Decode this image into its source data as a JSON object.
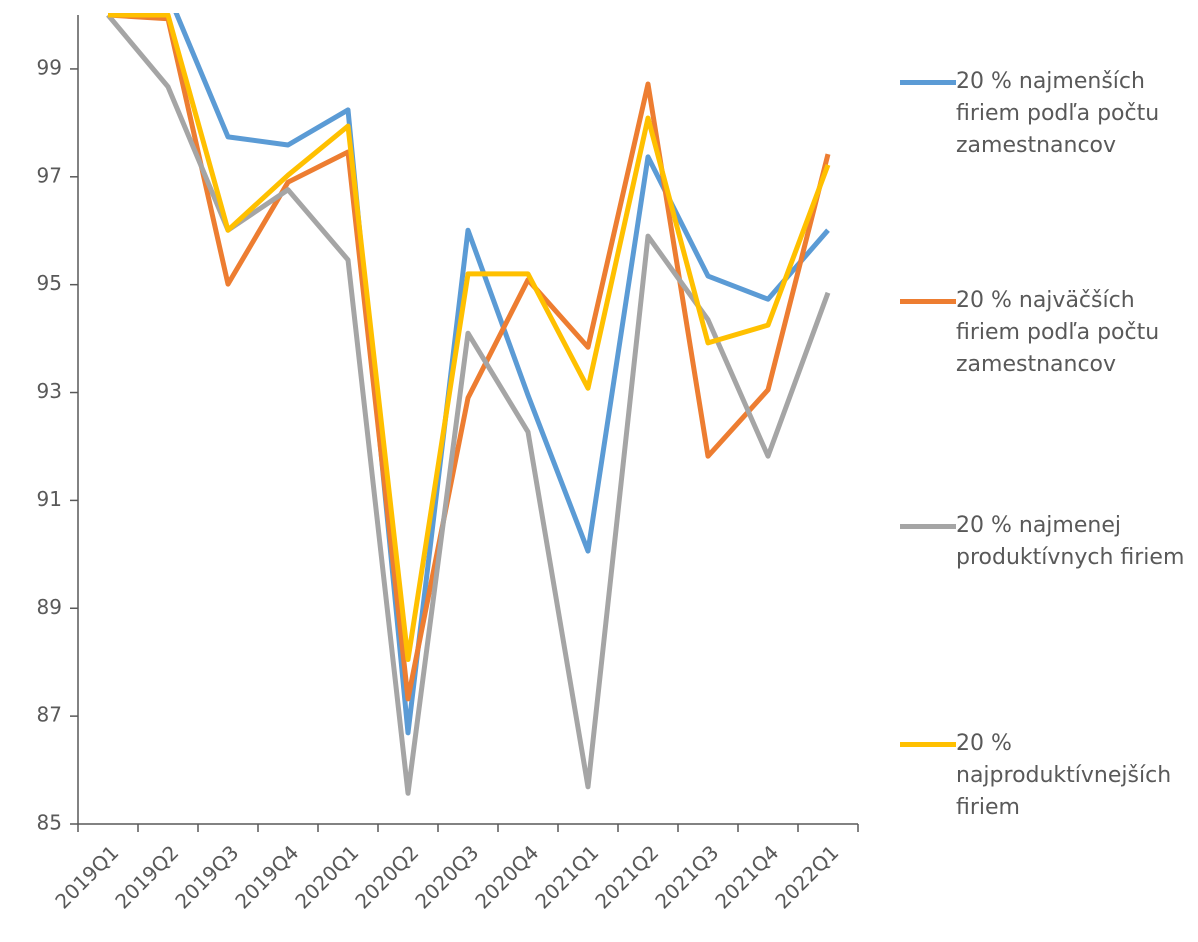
{
  "chart_data": {
    "type": "line",
    "categories": [
      "2019Q1",
      "2019Q2",
      "2019Q3",
      "2019Q4",
      "2020Q1",
      "2020Q2",
      "2020Q3",
      "2020Q4",
      "2021Q1",
      "2021Q2",
      "2021Q3",
      "2021Q4",
      "2022Q1"
    ],
    "series": [
      {
        "name": "20 % najmenších firiem podľa počtu zamestnancov",
        "color": "#5b9bd5",
        "values": [
          100.1,
          100.4,
          97.74,
          97.59,
          98.24,
          86.69,
          96.01,
          92.95,
          90.06,
          97.37,
          95.16,
          94.73,
          96.01
        ]
      },
      {
        "name": "20 % najväčších firiem podľa počtu zamestnancov",
        "color": "#ed7d31",
        "values": [
          100.0,
          99.93,
          95.01,
          96.9,
          97.46,
          87.32,
          92.9,
          95.09,
          93.84,
          98.72,
          91.82,
          93.05,
          97.42
        ]
      },
      {
        "name": "20 % najmenej produktívnych firiem",
        "color": "#a5a5a5",
        "values": [
          100.0,
          98.67,
          96.01,
          96.76,
          95.46,
          85.57,
          94.1,
          92.27,
          85.69,
          95.9,
          94.35,
          91.82,
          94.85
        ]
      },
      {
        "name": "20 % najproduktívnejších firiem",
        "color": "#ffc000",
        "values": [
          100.0,
          100.0,
          96.01,
          97.03,
          97.94,
          88.05,
          95.2,
          95.2,
          93.08,
          98.09,
          93.92,
          94.25,
          97.22
        ]
      }
    ],
    "ylim": [
      85,
      100
    ],
    "yticks": [
      85,
      87,
      89,
      91,
      93,
      95,
      97,
      99
    ],
    "legend": "right"
  }
}
